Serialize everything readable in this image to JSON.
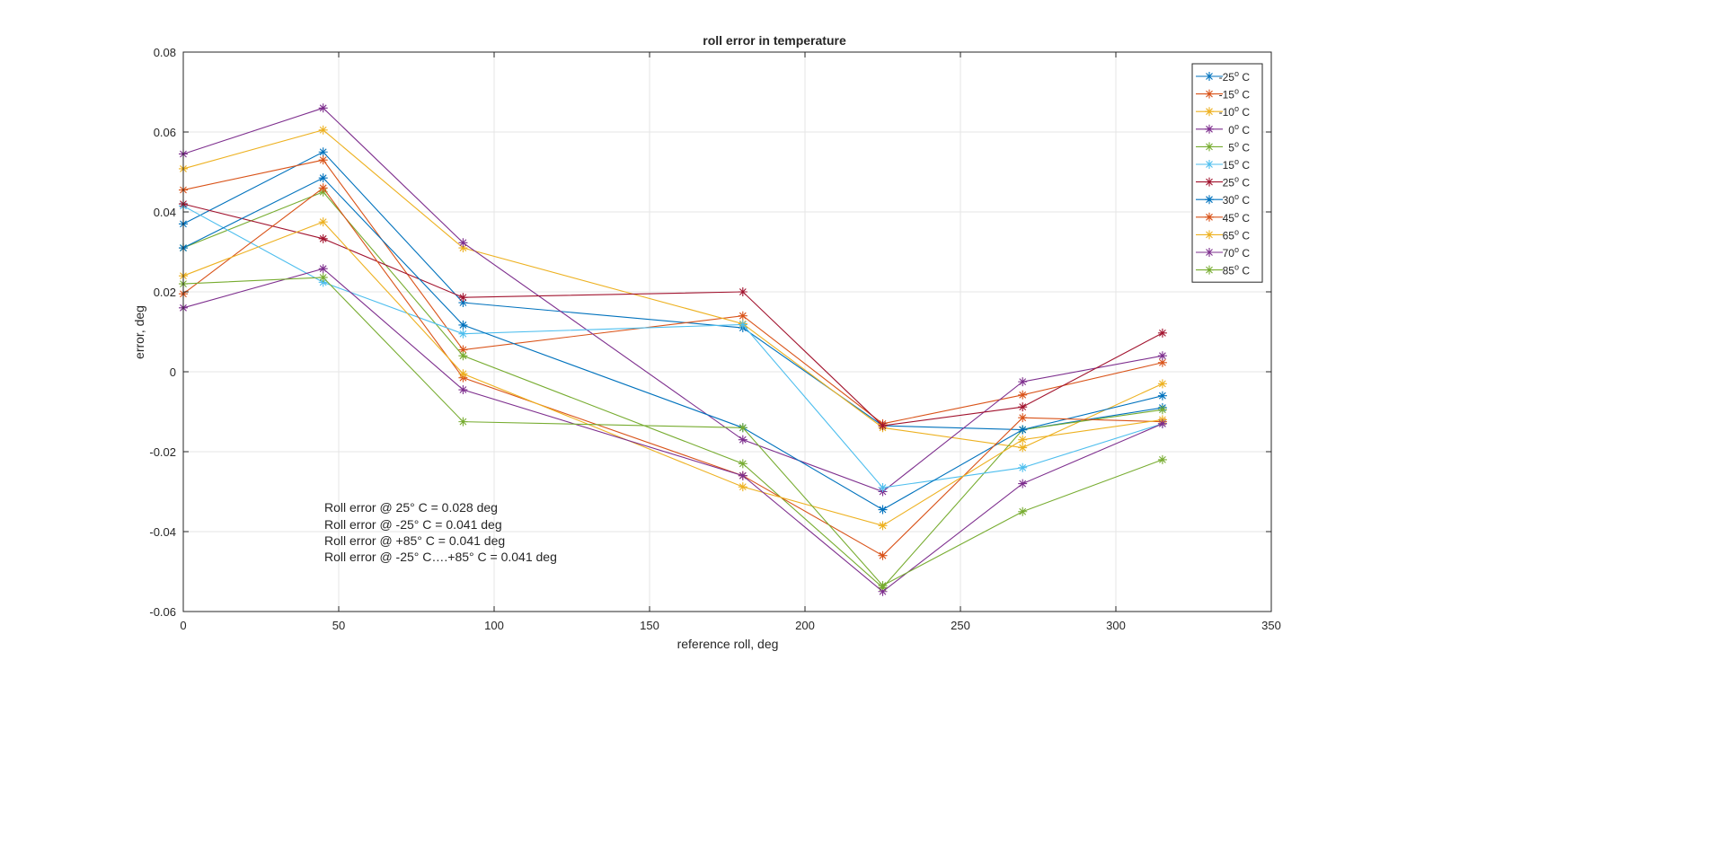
{
  "chart_data": {
    "type": "line",
    "title": "roll error in temperature",
    "xlabel": "reference roll, deg",
    "ylabel": "error, deg",
    "xlim": [
      0,
      350
    ],
    "ylim": [
      -0.06,
      0.08
    ],
    "xticks": [
      "0",
      "50",
      "100",
      "150",
      "200",
      "250",
      "300",
      "350"
    ],
    "xtick_values": [
      0,
      50,
      100,
      150,
      200,
      250,
      300,
      350
    ],
    "yticks": [
      "-0.06",
      "-0.04",
      "-0.02",
      "0",
      "0.02",
      "0.04",
      "0.06",
      "0.08"
    ],
    "ytick_values": [
      -0.06,
      -0.04,
      -0.02,
      0,
      0.02,
      0.04,
      0.06,
      0.08
    ],
    "grid": true,
    "legend_position": "top-right",
    "marker": "asterisk",
    "x": [
      0,
      45,
      90,
      180,
      225,
      270,
      315
    ],
    "series": [
      {
        "name": "-25",
        "label_suffix": " C",
        "color": "#0072BD",
        "values": [
          0.037,
          0.055,
          0.0173,
          0.011,
          -0.0135,
          -0.0145,
          -0.009
        ]
      },
      {
        "name": "-15",
        "label_suffix": " C",
        "color": "#D95319",
        "values": [
          0.0455,
          0.053,
          0.0055,
          0.014,
          -0.013,
          -0.0058,
          0.0023
        ]
      },
      {
        "name": "-10",
        "label_suffix": " C",
        "color": "#EDB120",
        "values": [
          0.0508,
          0.0605,
          0.031,
          0.012,
          -0.014,
          -0.019,
          -0.003
        ]
      },
      {
        "name": "0",
        "label_suffix": " C",
        "color": "#7E2F8E",
        "values": [
          0.0545,
          0.066,
          0.0323,
          -0.017,
          -0.03,
          -0.0025,
          0.004
        ]
      },
      {
        "name": "5",
        "label_suffix": " C",
        "color": "#77AC30",
        "values": [
          0.031,
          0.045,
          0.004,
          -0.023,
          -0.054,
          -0.0145,
          -0.0095
        ]
      },
      {
        "name": "15",
        "label_suffix": " C",
        "color": "#4DBEEE",
        "values": [
          0.0415,
          0.0224,
          0.0095,
          0.0118,
          -0.029,
          -0.024,
          -0.013
        ]
      },
      {
        "name": "25",
        "label_suffix": " C",
        "color": "#A2142F",
        "values": [
          0.042,
          0.0333,
          0.0186,
          0.02,
          -0.0135,
          -0.0088,
          0.0097
        ]
      },
      {
        "name": "30",
        "label_suffix": " C",
        "color": "#0072BD",
        "values": [
          0.031,
          0.0485,
          0.0117,
          -0.014,
          -0.0345,
          -0.0145,
          -0.006
        ]
      },
      {
        "name": "45",
        "label_suffix": " C",
        "color": "#D95319",
        "values": [
          0.0195,
          0.046,
          -0.0015,
          -0.026,
          -0.046,
          -0.0115,
          -0.0125
        ]
      },
      {
        "name": "65",
        "label_suffix": " C",
        "color": "#EDB120",
        "values": [
          0.024,
          0.0375,
          -0.0005,
          -0.0288,
          -0.0385,
          -0.017,
          -0.012
        ]
      },
      {
        "name": "70",
        "label_suffix": " C",
        "color": "#7E2F8E",
        "values": [
          0.016,
          0.0258,
          -0.0045,
          -0.026,
          -0.055,
          -0.028,
          -0.013
        ]
      },
      {
        "name": "85",
        "label_suffix": " C",
        "color": "#77AC30",
        "values": [
          0.022,
          0.0236,
          -0.0125,
          -0.014,
          -0.0535,
          -0.035,
          -0.022
        ]
      }
    ],
    "degree_superscript": "o",
    "annotations": [
      "Roll error @ 25° C = 0.028 deg",
      "Roll error @ -25° C = 0.041 deg",
      "Roll error @ +85° C = 0.041 deg",
      "Roll error @ -25° C….+85° C = 0.041 deg"
    ]
  }
}
